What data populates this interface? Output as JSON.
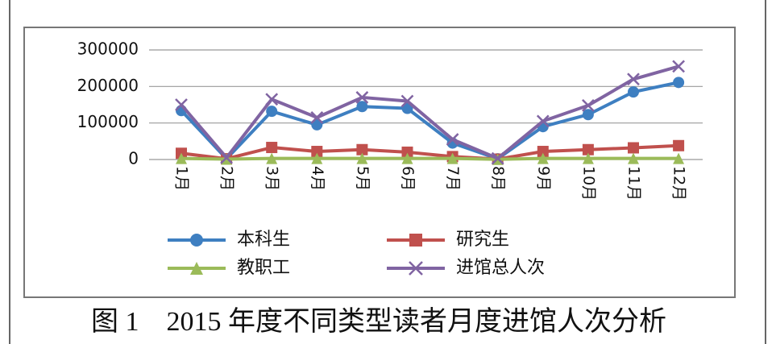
{
  "chart_data": {
    "type": "line",
    "caption": "图 1　2015 年度不同类型读者月度进馆人次分析",
    "categories": [
      "1月",
      "2月",
      "3月",
      "4月",
      "5月",
      "6月",
      "7月",
      "8月",
      "9月",
      "10月",
      "11月",
      "12月"
    ],
    "series": [
      {
        "name": "本科生",
        "color": "#3e7fc1",
        "marker": "circle",
        "values": [
          134000,
          2000,
          132000,
          95000,
          145000,
          140000,
          45000,
          2000,
          90000,
          123000,
          185000,
          211000
        ]
      },
      {
        "name": "研究生",
        "color": "#c0504d",
        "marker": "square",
        "values": [
          17000,
          2000,
          33000,
          22000,
          27000,
          20000,
          8000,
          1000,
          22000,
          27000,
          32000,
          38000
        ]
      },
      {
        "name": "教职工",
        "color": "#9bbb59",
        "marker": "triangle",
        "values": [
          3000,
          1000,
          3000,
          3000,
          3000,
          3000,
          3000,
          500,
          3000,
          3000,
          3000,
          3000
        ]
      },
      {
        "name": "进馆总人次",
        "color": "#8064a2",
        "marker": "x",
        "values": [
          150000,
          5000,
          165000,
          115000,
          170000,
          160000,
          55000,
          3000,
          105000,
          148000,
          220000,
          255000
        ]
      }
    ],
    "ylim": [
      0,
      300000
    ],
    "yticks": [
      0,
      100000,
      200000,
      300000
    ],
    "grid": true
  }
}
